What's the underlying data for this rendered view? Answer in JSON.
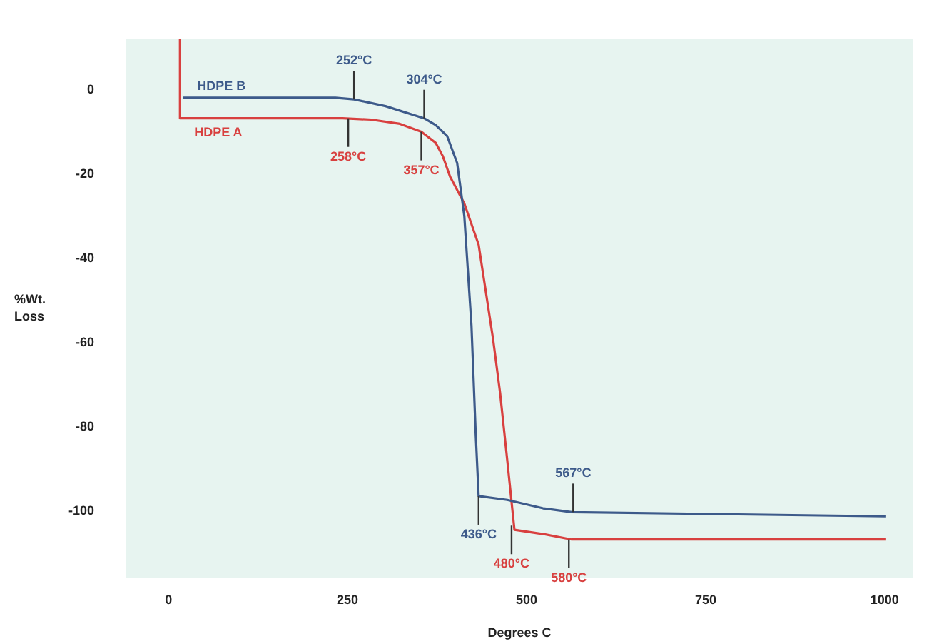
{
  "chart_data": {
    "type": "line",
    "xlabel": "Degrees C",
    "ylabel": "%Wt. Loss",
    "xlim": [
      -60,
      1040
    ],
    "xticks": [
      0,
      250,
      500,
      750,
      1000
    ],
    "ylim": [
      -116,
      12
    ],
    "yticks": [
      0,
      -20,
      -40,
      -60,
      -80,
      -100
    ],
    "grid": false,
    "legend": false,
    "marker": "none",
    "line_style": "solid",
    "series": [
      {
        "name": "HDPE B",
        "color": "#3d5a8a",
        "x": [
          20,
          233,
          259,
          303,
          357,
          373,
          389,
          403,
          413,
          423,
          429,
          433,
          473,
          523,
          563,
          1002
        ],
        "values": [
          -1.9,
          -1.9,
          -2.3,
          -3.9,
          -6.8,
          -8.4,
          -11,
          -17.4,
          -30,
          -56,
          -82,
          -96.5,
          -97.4,
          -99.4,
          -100.3,
          -101.3
        ]
      },
      {
        "name": "HDPE A",
        "color": "#d8403f",
        "x": [
          16,
          16,
          243,
          283,
          323,
          353,
          373,
          383,
          393,
          413,
          433,
          453,
          463,
          473,
          483,
          523,
          563,
          1002
        ],
        "values": [
          12,
          -6.8,
          -6.8,
          -7.1,
          -8.1,
          -10,
          -12.6,
          -15.8,
          -20.6,
          -27,
          -36.8,
          -59,
          -72,
          -88,
          -104.5,
          -105.5,
          -106.8,
          -106.8
        ]
      }
    ],
    "annotations": [
      {
        "text": "252°C",
        "x": 259,
        "y": -2.3
      },
      {
        "text": "304°C",
        "x": 357,
        "y": -6.8
      },
      {
        "text": "258°C",
        "x": 251,
        "y": -6.8
      },
      {
        "text": "357°C",
        "x": 353,
        "y": -10
      },
      {
        "text": "436°C",
        "x": 433,
        "y": -96.5
      },
      {
        "text": "480°C",
        "x": 479,
        "y": -103.5
      },
      {
        "text": "567°C",
        "x": 565,
        "y": -100.3
      },
      {
        "text": "580°C",
        "x": 559,
        "y": -106.8
      }
    ]
  }
}
